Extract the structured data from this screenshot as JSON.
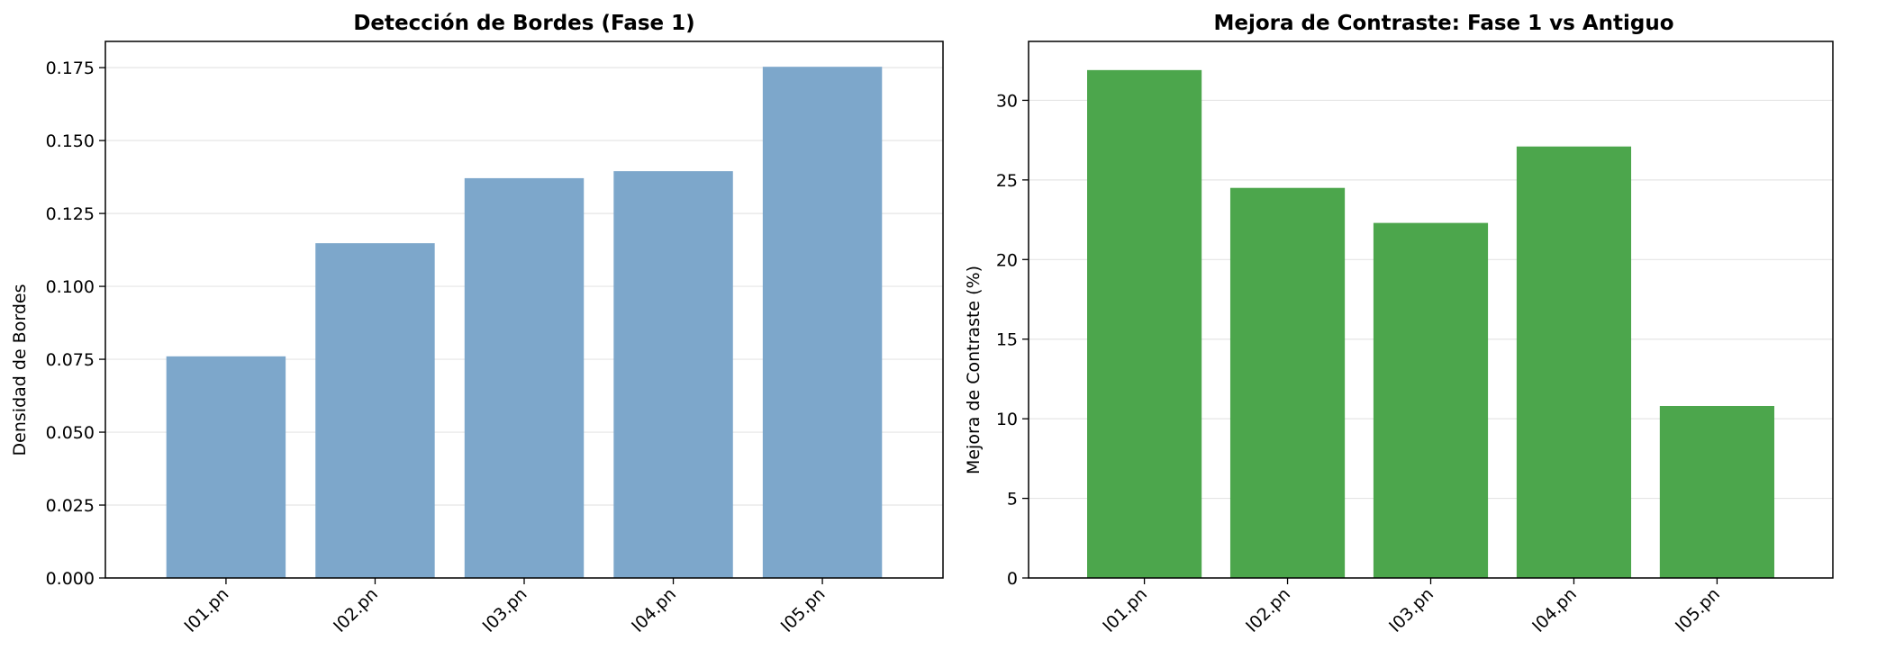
{
  "colors": {
    "panel1_bar": "#7da7cb",
    "panel2_bar": "#4ca64c",
    "grid": "#e5e5e5"
  },
  "chart_data": [
    {
      "type": "bar",
      "title": "Detección de Bordes (Fase 1)",
      "xlabel": "",
      "ylabel": "Densidad de Bordes",
      "categories": [
        "I01.pn",
        "I02.pn",
        "I03.pn",
        "I04.pn",
        "I05.pn"
      ],
      "values": [
        0.076,
        0.1148,
        0.1371,
        0.1395,
        0.1753
      ],
      "ylim": [
        0,
        0.184
      ],
      "yticks": [
        0.0,
        0.025,
        0.05,
        0.075,
        0.1,
        0.125,
        0.15,
        0.175
      ],
      "ytick_labels": [
        "0.000",
        "0.025",
        "0.050",
        "0.075",
        "0.100",
        "0.125",
        "0.150",
        "0.175"
      ],
      "grid": "y",
      "color": "#7da7cb"
    },
    {
      "type": "bar",
      "title": "Mejora de Contraste: Fase 1 vs Antiguo",
      "xlabel": "",
      "ylabel": "Mejora de Contraste (%)",
      "categories": [
        "I01.pn",
        "I02.pn",
        "I03.pn",
        "I04.pn",
        "I05.pn"
      ],
      "values": [
        31.9,
        24.5,
        22.3,
        27.1,
        10.8
      ],
      "ylim": [
        0,
        33.7
      ],
      "yticks": [
        0,
        5,
        10,
        15,
        20,
        25,
        30
      ],
      "ytick_labels": [
        "0",
        "5",
        "10",
        "15",
        "20",
        "25",
        "30"
      ],
      "grid": "y",
      "color": "#4ca64c"
    }
  ]
}
